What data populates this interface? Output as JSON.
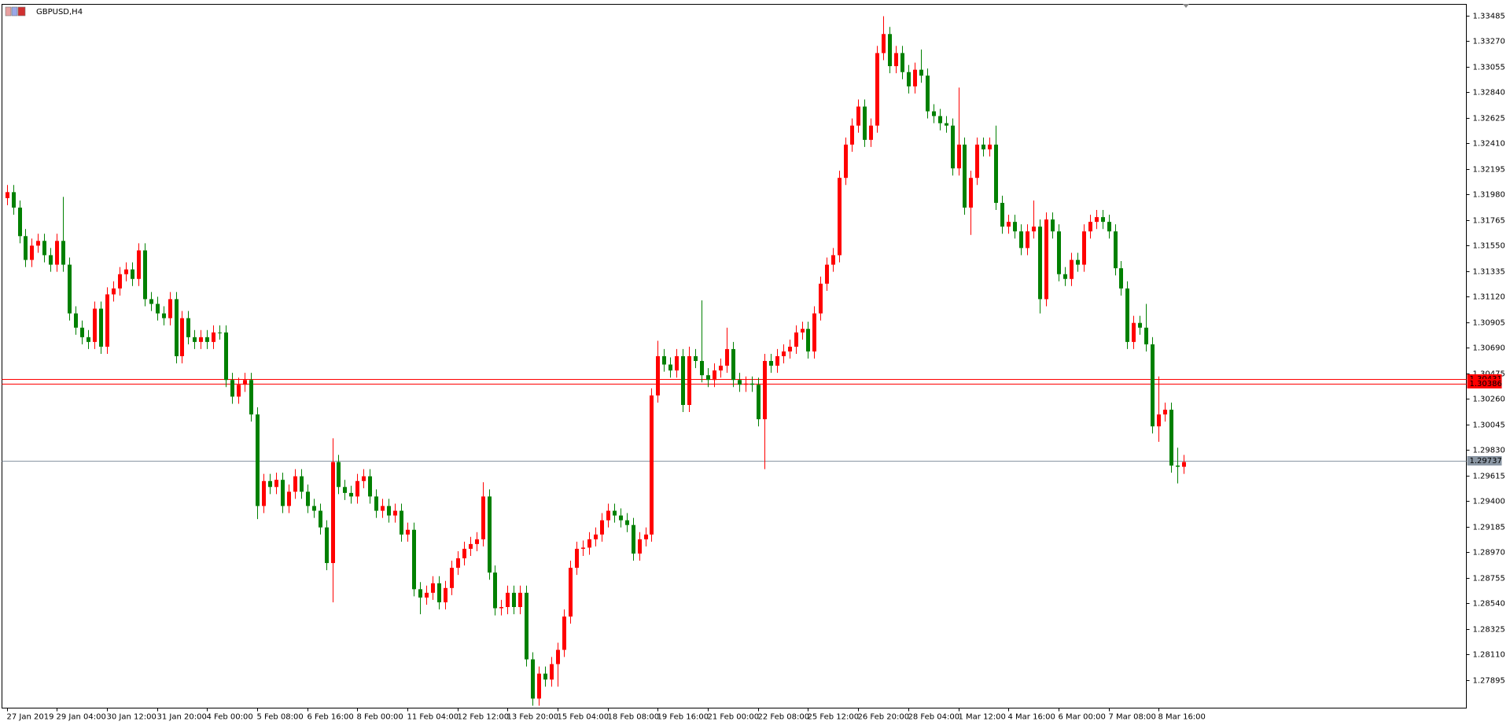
{
  "chart_data": {
    "type": "candlestick",
    "title": "GBPUSD,H4",
    "x": [
      "27 Jan 2019",
      null,
      null,
      null,
      null,
      null,
      null,
      null,
      "29 Jan 04:00",
      null,
      null,
      null,
      null,
      null,
      null,
      null,
      "30 Jan 12:00",
      null,
      null,
      null,
      null,
      null,
      null,
      null,
      "31 Jan 20:00",
      null,
      null,
      null,
      null,
      null,
      null,
      null,
      "4 Feb 00:00",
      null,
      null,
      null,
      null,
      null,
      null,
      null,
      "5 Feb 08:00",
      null,
      null,
      null,
      null,
      null,
      null,
      null,
      "6 Feb 16:00",
      null,
      null,
      null,
      null,
      null,
      null,
      null,
      "8 Feb 00:00",
      null,
      null,
      null,
      null,
      null,
      null,
      null,
      "11 Feb 04:00",
      null,
      null,
      null,
      null,
      null,
      null,
      null,
      "12 Feb 12:00",
      null,
      null,
      null,
      null,
      null,
      null,
      null,
      "13 Feb 20:00",
      null,
      null,
      null,
      null,
      null,
      null,
      null,
      "15 Feb 04:00",
      null,
      null,
      null,
      null,
      null,
      null,
      null,
      "18 Feb 08:00",
      null,
      null,
      null,
      null,
      null,
      null,
      null,
      "19 Feb 16:00",
      null,
      null,
      null,
      null,
      null,
      null,
      null,
      "21 Feb 00:00",
      null,
      null,
      null,
      null,
      null,
      null,
      null,
      "22 Feb 08:00",
      null,
      null,
      null,
      null,
      null,
      null,
      null,
      "25 Feb 12:00",
      null,
      null,
      null,
      null,
      null,
      null,
      null,
      "26 Feb 20:00",
      null,
      null,
      null,
      null,
      null,
      null,
      null,
      "28 Feb 04:00",
      null,
      null,
      null,
      null,
      null,
      null,
      null,
      "1 Mar 12:00",
      null,
      null,
      null,
      null,
      null,
      null,
      null,
      "4 Mar 16:00",
      null,
      null,
      null,
      null,
      null,
      null,
      null,
      "6 Mar 00:00",
      null,
      null,
      null,
      null,
      null,
      null,
      null,
      "7 Mar 08:00",
      null,
      null,
      null,
      null,
      null,
      null,
      null,
      "8 Mar 16:00",
      null,
      null,
      null,
      null
    ],
    "open": [
      1.3195,
      1.32,
      1.3187,
      1.3163,
      1.3143,
      1.3155,
      1.3159,
      1.3147,
      1.3139,
      1.3159,
      1.3139,
      1.3098,
      1.3086,
      1.3078,
      1.3074,
      1.3102,
      1.307,
      1.3114,
      1.3119,
      1.3131,
      1.3135,
      1.3127,
      1.3151,
      1.311,
      1.3106,
      1.3098,
      1.3094,
      1.311,
      1.3062,
      1.3094,
      1.3078,
      1.3074,
      1.3078,
      1.3074,
      1.3082,
      1.3082,
      1.3042,
      1.3028,
      1.3038,
      1.3042,
      1.3013,
      1.2936,
      1.2957,
      1.2952,
      1.2958,
      1.2936,
      1.2948,
      1.2961,
      1.2948,
      1.2936,
      1.2932,
      1.2918,
      1.2888,
      1.2973,
      1.2952,
      1.2947,
      1.2944,
      1.2957,
      1.2961,
      1.2944,
      1.2932,
      1.2936,
      1.2928,
      1.2932,
      1.2912,
      1.2916,
      1.2866,
      1.2859,
      1.2863,
      1.2871,
      1.2855,
      1.2867,
      1.2884,
      1.2892,
      1.29,
      1.2904,
      1.2908,
      1.2944,
      1.288,
      1.285,
      1.2851,
      1.2863,
      1.2851,
      1.2863,
      1.2807,
      1.2774,
      1.2795,
      1.279,
      1.2803,
      1.2815,
      1.2843,
      1.2884,
      1.29,
      1.2901,
      1.2908,
      1.2912,
      1.2924,
      1.2932,
      1.2928,
      1.2924,
      1.292,
      1.2896,
      1.2908,
      1.2912,
      1.3029,
      1.3062,
      1.3055,
      1.305,
      1.3062,
      1.3021,
      1.3062,
      1.3058,
      1.3046,
      1.3042,
      1.305,
      1.3054,
      1.3068,
      1.3042,
      1.3038,
      1.3039,
      1.3038,
      1.3009,
      1.3058,
      1.3054,
      1.3062,
      1.3066,
      1.307,
      1.3082,
      1.3085,
      1.3066,
      1.3098,
      1.3123,
      1.3139,
      1.3147,
      1.3212,
      1.324,
      1.3256,
      1.3272,
      1.3244,
      1.3256,
      1.3317,
      1.3333,
      1.3306,
      1.3317,
      1.3301,
      1.3289,
      1.3303,
      1.3298,
      1.3268,
      1.3264,
      1.3258,
      1.3256,
      1.322,
      1.324,
      1.3187,
      1.3212,
      1.324,
      1.3236,
      1.324,
      1.3191,
      1.3171,
      1.3175,
      1.3167,
      1.3153,
      1.3167,
      1.3171,
      1.311,
      1.3177,
      1.3167,
      1.3131,
      1.3127,
      1.3143,
      1.3139,
      1.3167,
      1.3175,
      1.3179,
      1.3175,
      1.3167,
      1.3136,
      1.3119,
      1.3074,
      1.309,
      1.3086,
      1.3072,
      1.3003,
      1.3013,
      1.3017,
      1.297,
      1.2969
    ],
    "high": [
      1.3206,
      1.3206,
      1.3193,
      1.3169,
      1.3161,
      1.3165,
      1.3165,
      1.3153,
      1.3165,
      1.3196,
      1.3145,
      1.3104,
      1.3092,
      1.3084,
      1.3108,
      1.3108,
      1.312,
      1.3125,
      1.3137,
      1.3141,
      1.3141,
      1.3157,
      1.3157,
      1.3116,
      1.3112,
      1.3104,
      1.3116,
      1.3116,
      1.31,
      1.31,
      1.3084,
      1.3084,
      1.3084,
      1.3088,
      1.3088,
      1.3088,
      1.3048,
      1.3044,
      1.3048,
      1.3048,
      1.3019,
      1.2963,
      1.2963,
      1.2964,
      1.2964,
      1.2954,
      1.2967,
      1.2967,
      1.2954,
      1.2942,
      1.2938,
      1.2924,
      1.2993,
      1.2979,
      1.2958,
      1.2953,
      1.2963,
      1.2967,
      1.2967,
      1.295,
      1.2942,
      1.2942,
      1.2938,
      1.2938,
      1.2922,
      1.2922,
      1.2872,
      1.2869,
      1.2877,
      1.2877,
      1.2873,
      1.289,
      1.2898,
      1.2906,
      1.291,
      1.2914,
      1.2956,
      1.295,
      1.2886,
      1.2857,
      1.2869,
      1.2869,
      1.2869,
      1.2869,
      1.2813,
      1.2801,
      1.2801,
      1.2809,
      1.2821,
      1.2849,
      1.289,
      1.2906,
      1.2907,
      1.2914,
      1.2918,
      1.293,
      1.2938,
      1.2938,
      1.2934,
      1.293,
      1.2926,
      1.2914,
      1.2918,
      1.3035,
      1.3075,
      1.3068,
      1.3061,
      1.3068,
      1.3068,
      1.307,
      1.3068,
      1.3109,
      1.3052,
      1.3056,
      1.306,
      1.3086,
      1.3074,
      1.3048,
      1.3045,
      1.3045,
      1.3044,
      1.3064,
      1.3064,
      1.3068,
      1.3072,
      1.3076,
      1.3088,
      1.3091,
      1.3091,
      1.3104,
      1.3129,
      1.3145,
      1.3153,
      1.3218,
      1.3246,
      1.3262,
      1.3278,
      1.3278,
      1.3262,
      1.3323,
      1.3348,
      1.3339,
      1.3323,
      1.3323,
      1.3307,
      1.3309,
      1.332,
      1.3304,
      1.3274,
      1.327,
      1.3264,
      1.3262,
      1.3288,
      1.3246,
      1.3218,
      1.3246,
      1.3246,
      1.3246,
      1.3256,
      1.3197,
      1.3181,
      1.3181,
      1.3173,
      1.3173,
      1.3193,
      1.3177,
      1.3183,
      1.3183,
      1.3173,
      1.3137,
      1.3149,
      1.3149,
      1.3173,
      1.3181,
      1.3185,
      1.3185,
      1.3181,
      1.3173,
      1.3142,
      1.3125,
      1.3096,
      1.3096,
      1.3106,
      1.3078,
      1.3045,
      1.3023,
      1.3023,
      1.2985,
      1.2979
    ],
    "low": [
      1.3189,
      1.3181,
      1.3157,
      1.3137,
      1.3137,
      1.3149,
      1.3141,
      1.3133,
      1.3133,
      1.3133,
      1.3092,
      1.308,
      1.3072,
      1.3068,
      1.3068,
      1.3064,
      1.3064,
      1.3108,
      1.3113,
      1.3125,
      1.3121,
      1.3121,
      1.3104,
      1.31,
      1.3092,
      1.3088,
      1.3088,
      1.3056,
      1.3056,
      1.3072,
      1.3068,
      1.3068,
      1.3068,
      1.3068,
      1.3076,
      1.3036,
      1.3022,
      1.3022,
      1.3032,
      1.3007,
      1.2925,
      1.293,
      1.2946,
      1.2946,
      1.293,
      1.293,
      1.2942,
      1.2942,
      1.293,
      1.2926,
      1.2912,
      1.2882,
      1.2855,
      1.2946,
      1.2941,
      1.2938,
      1.2938,
      1.2951,
      1.2938,
      1.2926,
      1.2926,
      1.2922,
      1.2922,
      1.2906,
      1.2906,
      1.286,
      1.2845,
      1.2853,
      1.2857,
      1.2849,
      1.2849,
      1.2861,
      1.2878,
      1.2886,
      1.2894,
      1.2898,
      1.2902,
      1.2874,
      1.2844,
      1.2844,
      1.2845,
      1.2845,
      1.2845,
      1.2801,
      1.2768,
      1.2768,
      1.2784,
      1.2784,
      1.2784,
      1.2809,
      1.2837,
      1.2878,
      1.2894,
      1.2895,
      1.2902,
      1.2906,
      1.2918,
      1.2922,
      1.2918,
      1.2914,
      1.289,
      1.289,
      1.2902,
      1.2906,
      1.3023,
      1.3049,
      1.3044,
      1.3044,
      1.3015,
      1.3015,
      1.3052,
      1.304,
      1.3036,
      1.3036,
      1.3044,
      1.3048,
      1.3036,
      1.3032,
      1.3032,
      1.3032,
      1.3003,
      1.2967,
      1.3048,
      1.3048,
      1.3056,
      1.306,
      1.3064,
      1.3076,
      1.306,
      1.306,
      1.3092,
      1.3117,
      1.3133,
      1.3141,
      1.3206,
      1.3234,
      1.325,
      1.3238,
      1.3238,
      1.325,
      1.3311,
      1.33,
      1.33,
      1.3295,
      1.3283,
      1.3283,
      1.3292,
      1.3262,
      1.3258,
      1.3252,
      1.325,
      1.3214,
      1.3214,
      1.3181,
      1.3164,
      1.3206,
      1.323,
      1.323,
      1.3185,
      1.3165,
      1.3165,
      1.3161,
      1.3147,
      1.3147,
      1.3161,
      1.3098,
      1.3104,
      1.3161,
      1.3125,
      1.3121,
      1.3121,
      1.3133,
      1.3133,
      1.3161,
      1.3169,
      1.3169,
      1.3161,
      1.313,
      1.3113,
      1.3068,
      1.3068,
      1.308,
      1.3066,
      1.2997,
      1.299,
      1.3007,
      1.2964,
      1.2955,
      1.2963
    ],
    "close": [
      1.32,
      1.3187,
      1.3163,
      1.3143,
      1.3155,
      1.3159,
      1.3147,
      1.3139,
      1.3159,
      1.3139,
      1.3098,
      1.3086,
      1.3078,
      1.3074,
      1.3102,
      1.307,
      1.3114,
      1.3119,
      1.3131,
      1.3135,
      1.3127,
      1.3151,
      1.311,
      1.3106,
      1.3098,
      1.3094,
      1.311,
      1.3062,
      1.3094,
      1.3078,
      1.3074,
      1.3078,
      1.3074,
      1.3082,
      1.3082,
      1.3042,
      1.3028,
      1.3038,
      1.3042,
      1.3013,
      1.2936,
      1.2957,
      1.2952,
      1.2958,
      1.2936,
      1.2948,
      1.2961,
      1.2948,
      1.2936,
      1.2932,
      1.2918,
      1.2888,
      1.2973,
      1.2952,
      1.2947,
      1.2944,
      1.2957,
      1.2961,
      1.2944,
      1.2932,
      1.2936,
      1.2928,
      1.2932,
      1.2912,
      1.2916,
      1.2866,
      1.2859,
      1.2863,
      1.2871,
      1.2855,
      1.2867,
      1.2884,
      1.2892,
      1.29,
      1.2904,
      1.2908,
      1.2944,
      1.288,
      1.285,
      1.2851,
      1.2863,
      1.2851,
      1.2863,
      1.2807,
      1.2774,
      1.2795,
      1.279,
      1.2803,
      1.2815,
      1.2843,
      1.2884,
      1.29,
      1.2901,
      1.2908,
      1.2912,
      1.2924,
      1.2932,
      1.2928,
      1.2924,
      1.292,
      1.2896,
      1.2908,
      1.2912,
      1.3029,
      1.3062,
      1.3055,
      1.305,
      1.3062,
      1.3021,
      1.3062,
      1.3058,
      1.3046,
      1.3042,
      1.305,
      1.3054,
      1.3068,
      1.3042,
      1.3038,
      1.3039,
      1.3038,
      1.3009,
      1.3058,
      1.3054,
      1.3062,
      1.3066,
      1.307,
      1.3082,
      1.3085,
      1.3066,
      1.3098,
      1.3123,
      1.3139,
      1.3147,
      1.3212,
      1.324,
      1.3256,
      1.3272,
      1.3244,
      1.3256,
      1.3317,
      1.3333,
      1.3306,
      1.3317,
      1.3301,
      1.3289,
      1.3303,
      1.3298,
      1.3268,
      1.3264,
      1.3258,
      1.3256,
      1.322,
      1.324,
      1.3187,
      1.3212,
      1.324,
      1.3236,
      1.324,
      1.3191,
      1.3171,
      1.3175,
      1.3167,
      1.3153,
      1.3167,
      1.3171,
      1.311,
      1.3177,
      1.3167,
      1.3131,
      1.3127,
      1.3143,
      1.3139,
      1.3167,
      1.3175,
      1.3179,
      1.3175,
      1.3167,
      1.3136,
      1.3119,
      1.3074,
      1.309,
      1.3086,
      1.3072,
      1.3003,
      1.3013,
      1.3017,
      1.297,
      1.2969,
      1.2973
    ],
    "up_color": "#ff0000",
    "down_color": "#008000",
    "ylim": [
      1.2766,
      1.3358
    ],
    "yticks": [
      1.33485,
      {
        "value": 1.3327,
        "label": "1.33270"
      },
      1.33055,
      {
        "value": 1.3284,
        "label": "1.32840"
      },
      1.32625,
      {
        "value": 1.3241,
        "label": "1.32410"
      },
      1.32195,
      {
        "value": 1.3198,
        "label": "1.31980"
      },
      1.31765,
      {
        "value": 1.3155,
        "label": "1.31550"
      },
      1.31335,
      {
        "value": 1.3112,
        "label": "1.31120"
      },
      1.30905,
      {
        "value": 1.3069,
        "label": "1.30690"
      },
      1.30475,
      {
        "value": 1.3026,
        "label": "1.30260"
      },
      1.30045,
      {
        "value": 1.2983,
        "label": "1.29830"
      },
      1.29615,
      {
        "value": 1.294,
        "label": "1.29400"
      },
      1.29185,
      {
        "value": 1.2897,
        "label": "1.28970"
      },
      1.28755,
      {
        "value": 1.2854,
        "label": "1.28540"
      },
      1.28325,
      {
        "value": 1.2811,
        "label": "1.28110"
      },
      1.27895
    ],
    "grid": false,
    "hlines": [
      {
        "value": 1.30431,
        "color": "#ff0000"
      },
      {
        "value": 1.30386,
        "color": "#ff0000"
      },
      {
        "value": 1.29737,
        "color": "#8a96a3"
      }
    ]
  }
}
